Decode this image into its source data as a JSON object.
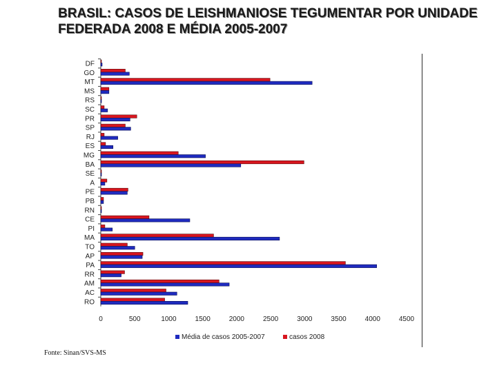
{
  "title_line1": "BRASIL: CASOS DE LEISHMANIOSE TEGUMENTAR POR UNIDADE",
  "title_line2": "FEDERADA 2008 E MÉDIA 2005-2007",
  "source": "Fonte: Sinan/SVS-MS",
  "chart_data": {
    "type": "bar",
    "orientation": "horizontal",
    "categories": [
      "DF",
      "GO",
      "MT",
      "MS",
      "RS",
      "SC",
      "PR",
      "SP",
      "RJ",
      "ES",
      "MG",
      "BA",
      "SE",
      "A",
      "PE",
      "PB",
      "RN",
      "CE",
      "PI",
      "MA",
      "TO",
      "AP",
      "PA",
      "RR",
      "AM",
      "AC",
      "RO"
    ],
    "series": [
      {
        "name": "casos 2008",
        "color": "#d8161f",
        "values": [
          10,
          360,
          2490,
          120,
          5,
          50,
          530,
          360,
          50,
          70,
          1140,
          2990,
          5,
          90,
          400,
          40,
          5,
          710,
          60,
          1660,
          390,
          620,
          3600,
          350,
          1740,
          960,
          940
        ]
      },
      {
        "name": "Média de casos 2005-2007",
        "color": "#1f2bbf",
        "values": [
          20,
          420,
          3110,
          120,
          5,
          100,
          430,
          440,
          250,
          180,
          1540,
          2060,
          5,
          60,
          390,
          40,
          5,
          1310,
          170,
          2630,
          500,
          610,
          4060,
          300,
          1890,
          1120,
          1280
        ]
      }
    ],
    "legend": [
      "Média de casos 2005-2007",
      "casos 2008"
    ],
    "legend_position": "bottom",
    "xlim": [
      0,
      4500
    ],
    "xticks": [
      "0",
      "500",
      "1000",
      "1500",
      "2000",
      "2500",
      "3000",
      "3500",
      "4000",
      "4500"
    ]
  }
}
